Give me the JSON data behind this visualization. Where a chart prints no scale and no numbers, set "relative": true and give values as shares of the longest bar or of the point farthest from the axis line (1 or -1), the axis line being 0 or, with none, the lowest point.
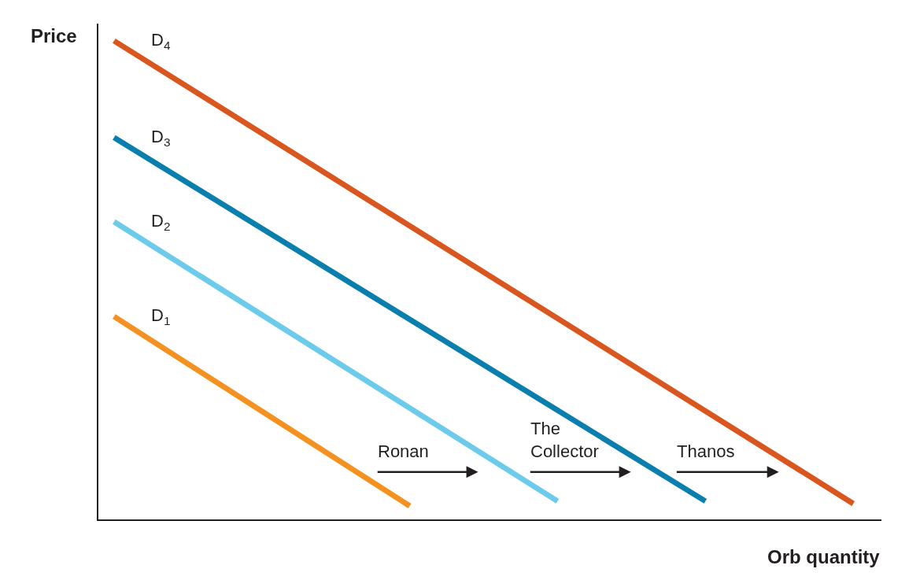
{
  "chart_data": {
    "type": "line",
    "relative": true,
    "xlabel": "Orb quantity",
    "ylabel": "Price",
    "legend": false,
    "categories": [
      null,
      null,
      null,
      null,
      null,
      null,
      null,
      null,
      null,
      null,
      null,
      null,
      null,
      null,
      null,
      null,
      null,
      null,
      null,
      null,
      null,
      null,
      null,
      null,
      null,
      null,
      null,
      null,
      null,
      null,
      null,
      null,
      null,
      null,
      null,
      null,
      null,
      null,
      null,
      null,
      null
    ],
    "series": [
      {
        "name": "D$_{1}$",
        "color": "#f39220",
        "values": [
          0.424,
          null,
          null,
          null,
          null,
          null,
          null,
          null,
          null,
          null,
          null,
          null,
          null,
          null,
          null,
          null,
          0.028,
          null,
          null,
          null,
          null,
          null,
          null,
          null,
          null,
          null,
          null,
          null,
          null,
          null,
          null,
          null,
          null,
          null,
          null,
          null,
          null,
          null,
          null,
          null,
          null
        ]
      },
      {
        "name": "D$_{2}$",
        "color": "#6ccbea",
        "values": [
          0.622,
          null,
          null,
          null,
          null,
          null,
          null,
          null,
          null,
          null,
          null,
          null,
          null,
          null,
          null,
          null,
          null,
          null,
          null,
          null,
          null,
          null,
          null,
          null,
          0.038,
          null,
          null,
          null,
          null,
          null,
          null,
          null,
          null,
          null,
          null,
          null,
          null,
          null,
          null,
          null,
          null
        ]
      },
      {
        "name": "D$_{3}$",
        "color": "#0a7fae",
        "values": [
          0.798,
          null,
          null,
          null,
          null,
          null,
          null,
          null,
          null,
          null,
          null,
          null,
          null,
          null,
          null,
          null,
          null,
          null,
          null,
          null,
          null,
          null,
          null,
          null,
          null,
          null,
          null,
          null,
          null,
          null,
          null,
          null,
          0.038,
          null,
          null,
          null,
          null,
          null,
          null,
          null,
          null
        ]
      },
      {
        "name": "D$_{4}$",
        "color": "#d9561f",
        "values": [
          1,
          null,
          null,
          null,
          null,
          null,
          null,
          null,
          null,
          null,
          null,
          null,
          null,
          null,
          null,
          null,
          null,
          null,
          null,
          null,
          null,
          null,
          null,
          null,
          null,
          null,
          null,
          null,
          null,
          null,
          null,
          null,
          null,
          null,
          null,
          null,
          null,
          null,
          null,
          null,
          0.033
        ]
      }
    ],
    "annotations": [
      "Ronan",
      "The\nCollector",
      "Thanos"
    ]
  }
}
